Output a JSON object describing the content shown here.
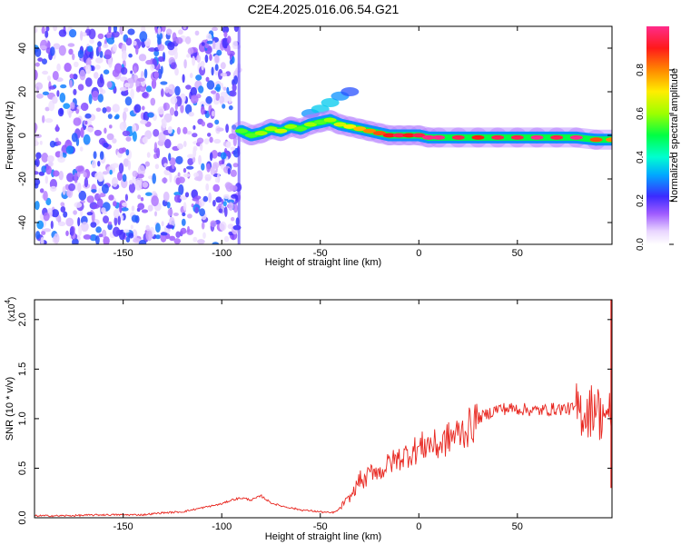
{
  "title": "C2E4.2025.016.06.54.G21",
  "chart_data": [
    {
      "type": "heatmap",
      "xlabel": "Height of straight line (km)",
      "ylabel": "Frequency (Hz)",
      "xlim": [
        -195,
        98
      ],
      "ylim": [
        -50,
        50
      ],
      "xticks": [
        -150,
        -100,
        -50,
        0,
        50
      ],
      "yticks": [
        -40,
        -20,
        0,
        20,
        40
      ],
      "colorbar": {
        "label": "Normalized spectral amplitude",
        "range": [
          0,
          1
        ],
        "ticks": [
          "0.0",
          "0.2",
          "0.4",
          "0.6",
          "0.8"
        ]
      },
      "noise_region_x": [
        -195,
        -91
      ],
      "ridge": {
        "x": [
          -90,
          -85,
          -80,
          -75,
          -70,
          -65,
          -60,
          -55,
          -50,
          -45,
          -40,
          -35,
          -30,
          -25,
          -20,
          -15,
          -10,
          -5,
          0,
          5,
          10,
          20,
          30,
          40,
          50,
          60,
          70,
          80,
          90,
          98
        ],
        "frequency": [
          2,
          0,
          1,
          3,
          2,
          4,
          3,
          5,
          6,
          7,
          5,
          4,
          3,
          2,
          1,
          0,
          0,
          0,
          0,
          -1,
          -1,
          -1,
          -1,
          -1,
          -1,
          -1,
          -1,
          -1,
          -2,
          -2
        ],
        "amplitude": [
          0.55,
          0.55,
          0.6,
          0.6,
          0.65,
          0.6,
          0.55,
          0.6,
          0.55,
          0.6,
          0.65,
          0.7,
          0.75,
          0.8,
          0.85,
          0.9,
          0.95,
          0.9,
          0.95,
          1.0,
          1.0,
          0.95,
          0.9,
          0.95,
          0.95,
          1.0,
          0.95,
          1.0,
          0.85,
          0.8
        ]
      },
      "branch": {
        "x": [
          -65,
          -55,
          -50,
          -45,
          -40,
          -35
        ],
        "frequency": [
          5,
          10,
          12,
          15,
          18,
          20
        ],
        "amplitude": [
          0.3,
          0.3,
          0.35,
          0.35,
          0.3,
          0.25
        ]
      }
    },
    {
      "type": "line",
      "xlabel": "Height of straight line (km)",
      "ylabel": "SNR (10 * v/v)",
      "y_multiplier": "(x10",
      "y_multiplier_exp": "4",
      "y_multiplier_close": ")",
      "xlim": [
        -195,
        98
      ],
      "ylim": [
        0,
        2.2
      ],
      "xticks": [
        -150,
        -100,
        -50,
        0,
        50
      ],
      "yticks": [
        "0.0",
        "0.5",
        "1.0",
        "1.5",
        "2.0"
      ],
      "color": "#e8261f",
      "series": [
        {
          "x": [
            -195,
            -180,
            -160,
            -140,
            -130,
            -120,
            -110,
            -100,
            -95,
            -90,
            -85,
            -80,
            -75,
            -70,
            -65,
            -60,
            -55,
            -50,
            -45,
            -42,
            -40,
            -38,
            -35,
            -32,
            -30,
            -28,
            -25,
            -22,
            -20,
            -15,
            -10,
            -5,
            0,
            5,
            10,
            15,
            20,
            25,
            30,
            35,
            40,
            50,
            60,
            70,
            80,
            85,
            88,
            90,
            92,
            94,
            96,
            97,
            98
          ],
          "values": [
            0.02,
            0.02,
            0.03,
            0.03,
            0.05,
            0.06,
            0.1,
            0.14,
            0.18,
            0.2,
            0.18,
            0.22,
            0.15,
            0.12,
            0.1,
            0.08,
            0.07,
            0.06,
            0.05,
            0.06,
            0.1,
            0.15,
            0.2,
            0.3,
            0.4,
            0.35,
            0.45,
            0.5,
            0.45,
            0.55,
            0.6,
            0.65,
            0.7,
            0.75,
            0.72,
            0.8,
            0.85,
            0.9,
            1.0,
            1.05,
            1.1,
            1.1,
            1.08,
            1.1,
            1.1,
            1.05,
            1.1,
            1.2,
            1.0,
            1.1,
            0.9,
            1.1,
            1.0
          ]
        }
      ]
    }
  ]
}
